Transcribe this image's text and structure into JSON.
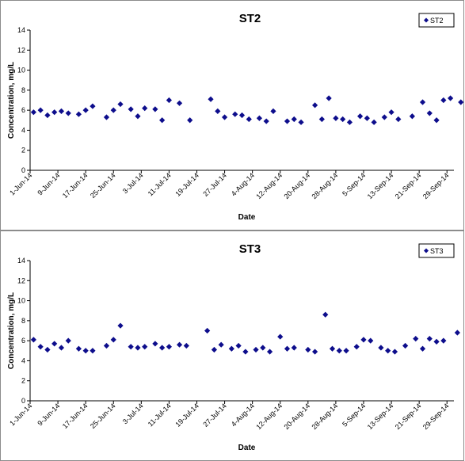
{
  "colors": {
    "marker": "#0d0d8c",
    "axis": "#000000",
    "border": "#8c8c8c"
  },
  "chart_data": [
    {
      "type": "scatter",
      "title": "ST2",
      "xlabel": "Date",
      "ylabel": "Concentration, mg/L",
      "ylim": [
        0,
        14
      ],
      "yticks": [
        0,
        2,
        4,
        6,
        8,
        10,
        12,
        14
      ],
      "xlim": [
        "2014-06-01",
        "2014-10-01"
      ],
      "xticks": [
        "1-Jun-14",
        "9-Jun-14",
        "17-Jun-14",
        "25-Jun-14",
        "3-Jul-14",
        "11-Jul-14",
        "19-Jul-14",
        "27-Jul-14",
        "4-Aug-14",
        "12-Aug-14",
        "20-Aug-14",
        "28-Aug-14",
        "5-Sep-14",
        "13-Sep-14",
        "21-Sep-14",
        "29-Sep-14"
      ],
      "grid": false,
      "legend": "top-right",
      "series": [
        {
          "name": "ST2",
          "marker": "diamond",
          "x": [
            "2014-06-02",
            "2014-06-04",
            "2014-06-06",
            "2014-06-08",
            "2014-06-10",
            "2014-06-12",
            "2014-06-15",
            "2014-06-17",
            "2014-06-19",
            "2014-06-23",
            "2014-06-25",
            "2014-06-27",
            "2014-06-30",
            "2014-07-02",
            "2014-07-04",
            "2014-07-07",
            "2014-07-09",
            "2014-07-11",
            "2014-07-14",
            "2014-07-17",
            "2014-07-23",
            "2014-07-25",
            "2014-07-27",
            "2014-07-30",
            "2014-08-01",
            "2014-08-03",
            "2014-08-06",
            "2014-08-08",
            "2014-08-10",
            "2014-08-14",
            "2014-08-16",
            "2014-08-18",
            "2014-08-22",
            "2014-08-24",
            "2014-08-26",
            "2014-08-28",
            "2014-08-30",
            "2014-09-01",
            "2014-09-04",
            "2014-09-06",
            "2014-09-08",
            "2014-09-11",
            "2014-09-13",
            "2014-09-15",
            "2014-09-19",
            "2014-09-22",
            "2014-09-24",
            "2014-09-26",
            "2014-09-28",
            "2014-09-30",
            "2014-10-03"
          ],
          "y": [
            5.8,
            6.0,
            5.5,
            5.8,
            5.9,
            5.7,
            5.6,
            6.0,
            6.4,
            5.3,
            6.0,
            6.6,
            6.1,
            5.4,
            6.2,
            6.1,
            5.0,
            7.0,
            6.7,
            5.0,
            7.1,
            5.9,
            5.3,
            5.6,
            5.5,
            5.1,
            5.2,
            4.9,
            5.9,
            4.9,
            5.1,
            4.8,
            6.5,
            5.1,
            7.2,
            5.2,
            5.1,
            4.8,
            5.4,
            5.2,
            4.8,
            5.3,
            5.8,
            5.1,
            5.4,
            6.8,
            5.7,
            5.0,
            7.0,
            7.2,
            6.8
          ]
        }
      ]
    },
    {
      "type": "scatter",
      "title": "ST3",
      "xlabel": "Date",
      "ylabel": "Concentration, mg/L",
      "ylim": [
        0,
        14
      ],
      "yticks": [
        0,
        2,
        4,
        6,
        8,
        10,
        12,
        14
      ],
      "xlim": [
        "2014-06-01",
        "2014-10-01"
      ],
      "xticks": [
        "1-Jun-14",
        "9-Jun-14",
        "17-Jun-14",
        "25-Jun-14",
        "3-Jul-14",
        "11-Jul-14",
        "19-Jul-14",
        "27-Jul-14",
        "4-Aug-14",
        "12-Aug-14",
        "20-Aug-14",
        "28-Aug-14",
        "5-Sep-14",
        "13-Sep-14",
        "21-Sep-14",
        "29-Sep-14"
      ],
      "grid": false,
      "legend": "top-right",
      "series": [
        {
          "name": "ST3",
          "marker": "diamond",
          "x": [
            "2014-06-02",
            "2014-06-04",
            "2014-06-06",
            "2014-06-08",
            "2014-06-10",
            "2014-06-12",
            "2014-06-15",
            "2014-06-17",
            "2014-06-19",
            "2014-06-23",
            "2014-06-25",
            "2014-06-27",
            "2014-06-30",
            "2014-07-02",
            "2014-07-04",
            "2014-07-07",
            "2014-07-09",
            "2014-07-11",
            "2014-07-14",
            "2014-07-16",
            "2014-07-22",
            "2014-07-24",
            "2014-07-26",
            "2014-07-29",
            "2014-07-31",
            "2014-08-02",
            "2014-08-05",
            "2014-08-07",
            "2014-08-09",
            "2014-08-12",
            "2014-08-14",
            "2014-08-16",
            "2014-08-20",
            "2014-08-22",
            "2014-08-25",
            "2014-08-27",
            "2014-08-29",
            "2014-08-31",
            "2014-09-03",
            "2014-09-05",
            "2014-09-07",
            "2014-09-10",
            "2014-09-12",
            "2014-09-14",
            "2014-09-17",
            "2014-09-20",
            "2014-09-22",
            "2014-09-24",
            "2014-09-26",
            "2014-09-28",
            "2014-10-02"
          ],
          "y": [
            6.1,
            5.4,
            5.1,
            5.7,
            5.3,
            6.0,
            5.2,
            5.0,
            5.0,
            5.5,
            6.1,
            7.5,
            5.4,
            5.3,
            5.4,
            5.7,
            5.3,
            5.4,
            5.6,
            5.5,
            7.0,
            5.1,
            5.6,
            5.2,
            5.5,
            4.9,
            5.1,
            5.3,
            4.9,
            6.4,
            5.2,
            5.3,
            5.1,
            4.9,
            8.6,
            5.2,
            5.0,
            5.0,
            5.4,
            6.1,
            6.0,
            5.3,
            5.0,
            4.9,
            5.5,
            6.2,
            5.2,
            6.2,
            5.9,
            6.0,
            6.8
          ]
        }
      ]
    }
  ]
}
